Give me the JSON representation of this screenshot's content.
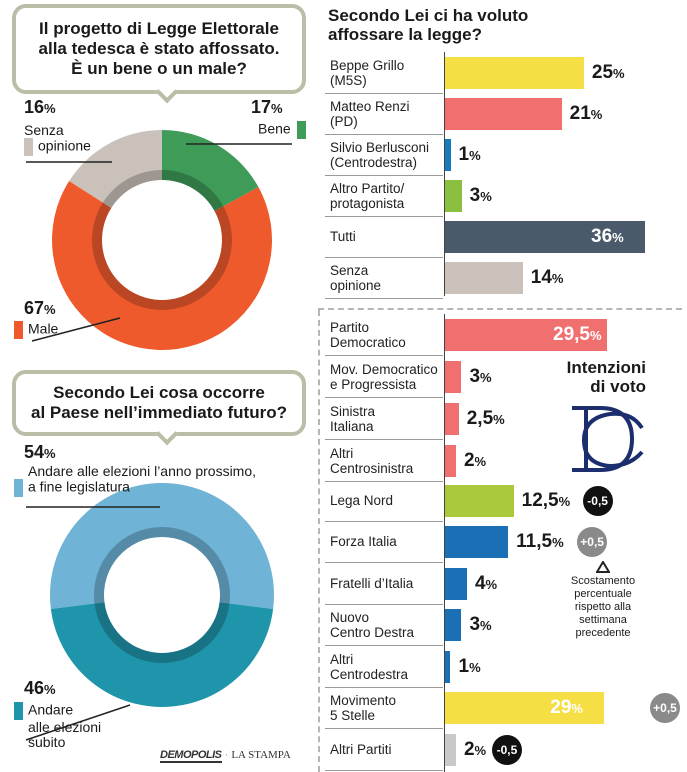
{
  "chart_data": [
    {
      "type": "pie",
      "title": "Il progetto di Legge Elettorale alla tedesca è stato affossato. È un bene o un male?",
      "categories": [
        "Bene",
        "Male",
        "Senza opinione"
      ],
      "values": [
        17,
        67,
        16
      ],
      "value_labels": [
        "17",
        "67",
        "16"
      ],
      "colors": [
        "#3e9b58",
        "#ef5a2d",
        "#c9c1ba"
      ],
      "legend_labels": {
        "bene": "Bene",
        "male": "Male",
        "senza": "Senza opinione"
      }
    },
    {
      "type": "pie",
      "title": "Secondo Lei cosa occorre al Paese nell’immediato futuro?",
      "categories": [
        "Andare alle elezioni l’anno prossimo, a fine legislatura",
        "Andare alle elezioni subito"
      ],
      "values": [
        54,
        46
      ],
      "value_labels": [
        "54",
        "46"
      ],
      "colors": [
        "#6fb3d6",
        "#1f95ab"
      ],
      "legend_labels": {
        "a": "Andare alle elezioni l’anno prossimo, a fine legislatura",
        "b": "Andare alle elezioni subito"
      }
    },
    {
      "type": "bar",
      "title": "Secondo Lei ci ha voluto affossare la legge?",
      "categories": [
        "Beppe Grillo (M5S)",
        "Matteo Renzi (PD)",
        "Silvio Berlusconi (Centrodestra)",
        "Altro Partito/ protagonista",
        "Tutti",
        "Senza opinione"
      ],
      "values": [
        25,
        21,
        1,
        3,
        36,
        14
      ],
      "value_labels": [
        "25",
        "21",
        "1",
        "3",
        "36",
        "14"
      ],
      "colors": [
        "#f6df45",
        "#f07070",
        "#1a7ac0",
        "#8cbf3f",
        "#4a5a6a",
        "#c9c1ba"
      ]
    },
    {
      "type": "bar",
      "title": "Intenzioni di voto",
      "categories": [
        "Partito Democratico",
        "Mov. Democratico e Progressista",
        "Sinistra Italiana",
        "Altri Centrosinistra",
        "Lega Nord",
        "Forza Italia",
        "Fratelli d’Italia",
        "Nuovo Centro Destra",
        "Altri Centrodestra",
        "Movimento 5 Stelle",
        "Altri Partiti"
      ],
      "values": [
        29.5,
        3,
        2.5,
        2,
        12.5,
        11.5,
        4,
        3,
        1,
        29,
        2
      ],
      "value_labels": [
        "29,5",
        "3",
        "2,5",
        "2",
        "12,5",
        "11,5",
        "4",
        "3",
        "1",
        "29",
        "2"
      ],
      "colors": [
        "#f07070",
        "#f07070",
        "#f07070",
        "#f07070",
        "#a9c83c",
        "#1a6fb5",
        "#1a6fb5",
        "#1a6fb5",
        "#1a6fb5",
        "#f6df45",
        "#c9c9c9"
      ],
      "changes": {
        "Lega Nord": "-0,5",
        "Forza Italia": "+0,5",
        "Movimento 5 Stelle": "+0,5",
        "Altri Partiti": "-0,5"
      },
      "note": "Scostamento percentuale rispetto alla settimana precedente"
    }
  ],
  "texts": {
    "pct_sign": "%",
    "q1_line1": "Il progetto di Legge Elettorale",
    "q1_line2": "alla tedesca è stato affossato.",
    "q1_line3": "È un bene o un male?",
    "q2_line1": "Secondo Lei cosa occorre",
    "q2_line2": "al Paese nell’immediato futuro?",
    "r_title1": "Secondo Lei ci ha voluto",
    "r_title2": "affossare la legge?",
    "iv_title1": "Intenzioni",
    "iv_title2": "di voto",
    "note1": "Scostamento",
    "note2": "percentuale",
    "note3": "rispetto alla",
    "note4": "settimana",
    "note5": "precedente",
    "credit_logo": "DEMOPOLIS",
    "credit_pub": "LA STAMPA",
    "senza1": "Senza",
    "senza2": "opinione",
    "a54_1": "Andare alle elezioni l’anno prossimo,",
    "a54_2": "a fine legislatura",
    "b46_1": "Andare",
    "b46_2": "alle elezioni",
    "b46_3": "subito"
  },
  "row_labels": {
    "r1": [
      "Beppe Grillo",
      "(M5S)"
    ],
    "r2": [
      "Matteo Renzi",
      "(PD)"
    ],
    "r3": [
      "Silvio Berlusconi",
      "(Centrodestra)"
    ],
    "r4": [
      "Altro Partito/",
      "protagonista"
    ],
    "r5": [
      "Tutti"
    ],
    "r6": [
      "Senza",
      "opinione"
    ],
    "v1": [
      "Partito",
      "Democratico"
    ],
    "v2": [
      "Mov. Democratico",
      "e Progressista"
    ],
    "v3": [
      "Sinistra",
      "Italiana"
    ],
    "v4": [
      "Altri",
      "Centrosinistra"
    ],
    "v5": [
      "Lega Nord"
    ],
    "v6": [
      "Forza Italia"
    ],
    "v7": [
      "Fratelli d’Italia"
    ],
    "v8": [
      "Nuovo",
      "Centro Destra"
    ],
    "v9": [
      "Altri",
      "Centrodestra"
    ],
    "v10": [
      "Movimento",
      "5 Stelle"
    ],
    "v11": [
      "Altri Partiti"
    ]
  }
}
